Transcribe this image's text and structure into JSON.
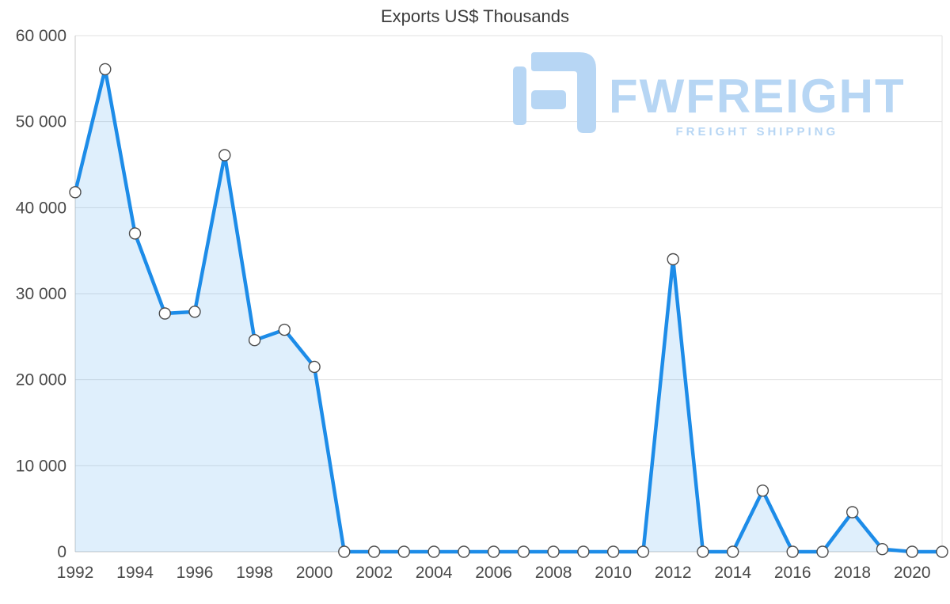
{
  "chart_data": {
    "type": "area",
    "title": "Exports US$ Thousands",
    "x": [
      1992,
      1993,
      1994,
      1995,
      1996,
      1997,
      1998,
      1999,
      2000,
      2001,
      2002,
      2003,
      2004,
      2005,
      2006,
      2007,
      2008,
      2009,
      2010,
      2011,
      2012,
      2013,
      2014,
      2015,
      2016,
      2017,
      2018,
      2019,
      2020,
      2021
    ],
    "values": [
      41800,
      56100,
      37000,
      27700,
      27900,
      46100,
      24600,
      25800,
      21500,
      0,
      0,
      0,
      0,
      0,
      0,
      0,
      0,
      0,
      0,
      0,
      34000,
      0,
      0,
      7100,
      0,
      0,
      4600,
      300,
      0,
      0
    ],
    "xticks": [
      1992,
      1994,
      1996,
      1998,
      2000,
      2002,
      2004,
      2006,
      2008,
      2010,
      2012,
      2014,
      2016,
      2018,
      2020
    ],
    "ytick_labels": [
      "0",
      "10 000",
      "20 000",
      "30 000",
      "40 000",
      "50 000",
      "60 000"
    ],
    "ylim": [
      0,
      60000
    ],
    "ytick_step": 10000,
    "grid": true,
    "legend": false,
    "marker": "circle",
    "colors": {
      "line": "#1d8ce8",
      "fill": "#1d8ce8",
      "fill_opacity": 0.14,
      "marker_fill": "#ffffff",
      "marker_stroke": "#4d4d4d",
      "grid": "#e2e2e2",
      "axis": "#c9c9c9",
      "text": "#4a4a4a",
      "title": "#3c3c3c"
    }
  },
  "watermark": {
    "brand": "FWFREIGHT",
    "tagline": "FREIGHT SHIPPING",
    "color": "#b7d6f4"
  }
}
